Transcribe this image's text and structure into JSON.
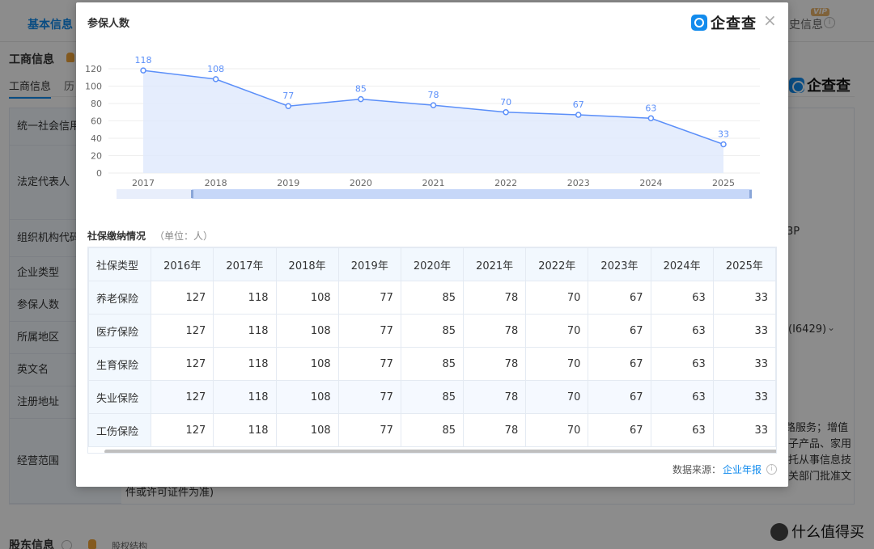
{
  "background": {
    "nav_basic": "基本信息",
    "nav_right": "史信息",
    "vip": "VIP",
    "section_title": "工商信息",
    "tab_active": "工商信息",
    "tab_history": "历",
    "labels": [
      "统一社会信用",
      "法定代表人",
      "组织机构代码",
      "企业类型",
      "参保人数",
      "所属地区",
      "英文名",
      "注册地址",
      "经营范围"
    ],
    "right_logo": "企查查",
    "right_fragments": [
      "3P",
      "(I6429)",
      "路服务；增值",
      "子产品、家用",
      "托从事信息技",
      "关部门批准文"
    ],
    "scope_tail": "件或许可证件为准)",
    "holder_title": "股东信息",
    "holder_link": "股权结构",
    "bottom_logo": "什么值得买"
  },
  "modal": {
    "title": "参保人数",
    "logo": "企查查",
    "close": "×",
    "subtitle": "社保缴纳情况",
    "unit": "（单位：人）",
    "source_label": "数据来源：",
    "source_link": "企业年报",
    "table": {
      "corner": "社保类型",
      "years": [
        "2016年",
        "2017年",
        "2018年",
        "2019年",
        "2020年",
        "2021年",
        "2022年",
        "2023年",
        "2024年",
        "2025年"
      ],
      "rows": [
        {
          "type": "养老保险",
          "values": [
            "127",
            "118",
            "108",
            "77",
            "85",
            "78",
            "70",
            "67",
            "63",
            "33"
          ]
        },
        {
          "type": "医疗保险",
          "values": [
            "127",
            "118",
            "108",
            "77",
            "85",
            "78",
            "70",
            "67",
            "63",
            "33"
          ]
        },
        {
          "type": "生育保险",
          "values": [
            "127",
            "118",
            "108",
            "77",
            "85",
            "78",
            "70",
            "67",
            "63",
            "33"
          ]
        },
        {
          "type": "失业保险",
          "values": [
            "127",
            "118",
            "108",
            "77",
            "85",
            "78",
            "70",
            "67",
            "63",
            "33"
          ]
        },
        {
          "type": "工伤保险",
          "values": [
            "127",
            "118",
            "108",
            "77",
            "85",
            "78",
            "70",
            "67",
            "63",
            "33"
          ]
        }
      ]
    }
  },
  "chart_data": {
    "type": "area",
    "x": [
      "2017",
      "2018",
      "2019",
      "2020",
      "2021",
      "2022",
      "2023",
      "2024",
      "2025"
    ],
    "values": [
      118,
      108,
      77,
      85,
      78,
      70,
      67,
      63,
      33
    ],
    "ylim": [
      0,
      120
    ],
    "yticks": [
      0,
      20,
      40,
      60,
      80,
      100,
      120
    ],
    "grid": true,
    "line_color": "#5b8ff9",
    "fill_color": "#dbe7fd"
  }
}
